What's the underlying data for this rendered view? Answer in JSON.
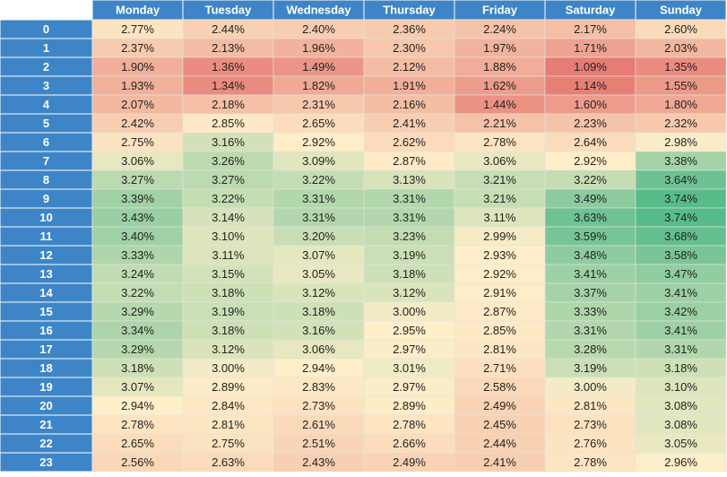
{
  "chart_data": {
    "type": "heatmap",
    "x": [
      "Monday",
      "Tuesday",
      "Wednesday",
      "Thursday",
      "Friday",
      "Saturday",
      "Sunday"
    ],
    "y": [
      "0",
      "1",
      "2",
      "3",
      "4",
      "5",
      "6",
      "7",
      "8",
      "9",
      "10",
      "11",
      "12",
      "13",
      "14",
      "15",
      "16",
      "17",
      "18",
      "19",
      "20",
      "21",
      "22",
      "23"
    ],
    "values": [
      [
        2.77,
        2.44,
        2.4,
        2.36,
        2.24,
        2.17,
        2.6
      ],
      [
        2.37,
        2.13,
        1.96,
        2.3,
        1.97,
        1.71,
        2.03
      ],
      [
        1.9,
        1.36,
        1.49,
        2.12,
        1.88,
        1.09,
        1.35
      ],
      [
        1.93,
        1.34,
        1.82,
        1.91,
        1.62,
        1.14,
        1.55
      ],
      [
        2.07,
        2.18,
        2.31,
        2.16,
        1.44,
        1.6,
        1.8
      ],
      [
        2.42,
        2.85,
        2.65,
        2.41,
        2.21,
        2.23,
        2.32
      ],
      [
        2.75,
        3.16,
        2.92,
        2.62,
        2.78,
        2.64,
        2.98
      ],
      [
        3.06,
        3.26,
        3.09,
        2.87,
        3.06,
        2.92,
        3.38
      ],
      [
        3.27,
        3.27,
        3.22,
        3.13,
        3.21,
        3.22,
        3.64
      ],
      [
        3.39,
        3.22,
        3.31,
        3.31,
        3.21,
        3.49,
        3.74
      ],
      [
        3.43,
        3.14,
        3.31,
        3.31,
        3.11,
        3.63,
        3.74
      ],
      [
        3.4,
        3.1,
        3.2,
        3.23,
        2.99,
        3.59,
        3.68
      ],
      [
        3.33,
        3.11,
        3.07,
        3.19,
        2.93,
        3.48,
        3.58
      ],
      [
        3.24,
        3.15,
        3.05,
        3.18,
        2.92,
        3.41,
        3.47
      ],
      [
        3.22,
        3.18,
        3.12,
        3.12,
        2.91,
        3.37,
        3.41
      ],
      [
        3.29,
        3.19,
        3.18,
        3.0,
        2.87,
        3.33,
        3.42
      ],
      [
        3.34,
        3.18,
        3.16,
        2.95,
        2.85,
        3.31,
        3.41
      ],
      [
        3.29,
        3.12,
        3.06,
        2.97,
        2.81,
        3.28,
        3.31
      ],
      [
        3.18,
        3.0,
        2.94,
        3.01,
        2.71,
        3.19,
        3.18
      ],
      [
        3.07,
        2.89,
        2.83,
        2.97,
        2.58,
        3.0,
        3.1
      ],
      [
        2.94,
        2.84,
        2.73,
        2.89,
        2.49,
        2.81,
        3.08
      ],
      [
        2.78,
        2.81,
        2.61,
        2.78,
        2.45,
        2.73,
        3.08
      ],
      [
        2.65,
        2.75,
        2.51,
        2.66,
        2.44,
        2.76,
        3.05
      ],
      [
        2.56,
        2.63,
        2.43,
        2.49,
        2.41,
        2.78,
        2.96
      ]
    ],
    "value_labels": [
      [
        "2.77%",
        "2.44%",
        "2.40%",
        "2.36%",
        "2.24%",
        "2.17%",
        "2.60%"
      ],
      [
        "2.37%",
        "2.13%",
        "1.96%",
        "2.30%",
        "1.97%",
        "1.71%",
        "2.03%"
      ],
      [
        "1.90%",
        "1.36%",
        "1.49%",
        "2.12%",
        "1.88%",
        "1.09%",
        "1.35%"
      ],
      [
        "1.93%",
        "1.34%",
        "1.82%",
        "1.91%",
        "1.62%",
        "1.14%",
        "1.55%"
      ],
      [
        "2.07%",
        "2.18%",
        "2.31%",
        "2.16%",
        "1.44%",
        "1.60%",
        "1.80%"
      ],
      [
        "2.42%",
        "2.85%",
        "2.65%",
        "2.41%",
        "2.21%",
        "2.23%",
        "2.32%"
      ],
      [
        "2.75%",
        "3.16%",
        "2.92%",
        "2.62%",
        "2.78%",
        "2.64%",
        "2.98%"
      ],
      [
        "3.06%",
        "3.26%",
        "3.09%",
        "2.87%",
        "3.06%",
        "2.92%",
        "3.38%"
      ],
      [
        "3.27%",
        "3.27%",
        "3.22%",
        "3.13%",
        "3.21%",
        "3.22%",
        "3.64%"
      ],
      [
        "3.39%",
        "3.22%",
        "3.31%",
        "3.31%",
        "3.21%",
        "3.49%",
        "3.74%"
      ],
      [
        "3.43%",
        "3.14%",
        "3.31%",
        "3.31%",
        "3.11%",
        "3.63%",
        "3.74%"
      ],
      [
        "3.40%",
        "3.10%",
        "3.20%",
        "3.23%",
        "2.99%",
        "3.59%",
        "3.68%"
      ],
      [
        "3.33%",
        "3.11%",
        "3.07%",
        "3.19%",
        "2.93%",
        "3.48%",
        "3.58%"
      ],
      [
        "3.24%",
        "3.15%",
        "3.05%",
        "3.18%",
        "2.92%",
        "3.41%",
        "3.47%"
      ],
      [
        "3.22%",
        "3.18%",
        "3.12%",
        "3.12%",
        "2.91%",
        "3.37%",
        "3.41%"
      ],
      [
        "3.29%",
        "3.19%",
        "3.18%",
        "3.00%",
        "2.87%",
        "3.33%",
        "3.42%"
      ],
      [
        "3.34%",
        "3.18%",
        "3.16%",
        "2.95%",
        "2.85%",
        "3.31%",
        "3.41%"
      ],
      [
        "3.29%",
        "3.12%",
        "3.06%",
        "2.97%",
        "2.81%",
        "3.28%",
        "3.31%"
      ],
      [
        "3.18%",
        "3.00%",
        "2.94%",
        "3.01%",
        "2.71%",
        "3.19%",
        "3.18%"
      ],
      [
        "3.07%",
        "2.89%",
        "2.83%",
        "2.97%",
        "2.58%",
        "3.00%",
        "3.10%"
      ],
      [
        "2.94%",
        "2.84%",
        "2.73%",
        "2.89%",
        "2.49%",
        "2.81%",
        "3.08%"
      ],
      [
        "2.78%",
        "2.81%",
        "2.61%",
        "2.78%",
        "2.45%",
        "2.73%",
        "3.08%"
      ],
      [
        "2.65%",
        "2.75%",
        "2.51%",
        "2.66%",
        "2.44%",
        "2.76%",
        "3.05%"
      ],
      [
        "2.56%",
        "2.63%",
        "2.43%",
        "2.49%",
        "2.41%",
        "2.78%",
        "2.96%"
      ]
    ],
    "colorscale": [
      "#e67c73",
      "#ffefc9",
      "#57bb8a"
    ],
    "header_color": "#3d85c6"
  }
}
